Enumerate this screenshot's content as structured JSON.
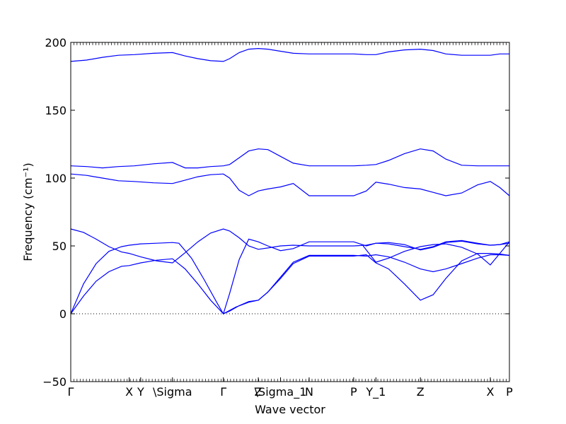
{
  "chart_data": {
    "type": "line",
    "xlabel": "Wave vector",
    "ylabel": "Frequency (cm⁻¹)",
    "ylim": [
      -50,
      200
    ],
    "xlim": [
      0,
      13.8
    ],
    "yticks": [
      -50,
      0,
      50,
      100,
      150,
      200
    ],
    "grid": false,
    "zero_line": 0,
    "xtick_labels": [
      {
        "label": "Γ",
        "x": 0
      },
      {
        "label": "X",
        "x": 1.84
      },
      {
        "label": "Y",
        "x": 2.2
      },
      {
        "label": "\\Sigma",
        "x": 3.2
      },
      {
        "label": "Γ",
        "x": 4.8
      },
      {
        "label": "Z",
        "x": 5.9
      },
      {
        "label": "\\Sigma_1",
        "x": 6.6
      },
      {
        "label": "N",
        "x": 7.5
      },
      {
        "label": "P",
        "x": 8.9
      },
      {
        "label": "Y_1",
        "x": 9.6
      },
      {
        "label": "Z",
        "x": 11.0
      },
      {
        "label": "X",
        "x": 13.2
      },
      {
        "label": "P",
        "x": 13.8
      }
    ],
    "series": [
      {
        "x": [
          0,
          0.5,
          1.0,
          1.5,
          2.0,
          2.6,
          3.2,
          3.6,
          4.0,
          4.4,
          4.8,
          5.0,
          5.3,
          5.6,
          5.9,
          6.2,
          6.6,
          7.0,
          7.5,
          8.2,
          8.9,
          9.3,
          9.6,
          10.0,
          10.5,
          11.0,
          11.4,
          11.8,
          12.3,
          12.8,
          13.2,
          13.5,
          13.8
        ],
        "values": [
          186,
          187,
          189,
          190.5,
          191,
          192,
          192.5,
          190,
          188,
          186.5,
          186,
          188,
          192.5,
          195,
          195.5,
          195,
          193.5,
          192,
          191.5,
          191.5,
          191.5,
          191,
          191,
          193,
          194.5,
          195,
          194,
          191.5,
          190.5,
          190.5,
          190.5,
          191.5,
          191.5
        ]
      },
      {
        "x": [
          0,
          0.5,
          1.0,
          1.5,
          2.0,
          2.6,
          3.2,
          3.6,
          4.0,
          4.4,
          4.8,
          5.0,
          5.3,
          5.6,
          5.9,
          6.2,
          6.6,
          7.0,
          7.5,
          8.2,
          8.9,
          9.3,
          9.6,
          10.0,
          10.5,
          11.0,
          11.4,
          11.8,
          12.3,
          12.8,
          13.2,
          13.5,
          13.8
        ],
        "values": [
          109,
          108.5,
          107.5,
          108.5,
          109,
          110.5,
          111.5,
          107.5,
          107.5,
          108.5,
          109,
          110,
          115,
          120,
          121.5,
          121,
          116,
          111,
          109,
          109,
          109,
          109.5,
          110,
          113,
          118,
          121.5,
          120,
          114,
          109.5,
          109,
          109,
          109,
          109
        ]
      },
      {
        "x": [
          0,
          0.5,
          1.0,
          1.5,
          2.0,
          2.6,
          3.2,
          3.6,
          4.0,
          4.4,
          4.8,
          5.0,
          5.3,
          5.6,
          5.9,
          6.2,
          6.6,
          7.0,
          7.5,
          8.2,
          8.9,
          9.3,
          9.6,
          10.0,
          10.5,
          11.0,
          11.4,
          11.8,
          12.3,
          12.8,
          13.2,
          13.5,
          13.8
        ],
        "values": [
          103,
          102,
          100,
          98,
          97.5,
          96.5,
          96,
          98.5,
          101,
          102.5,
          103,
          100,
          91,
          87,
          90.5,
          92,
          93.5,
          96,
          87,
          87,
          87,
          90.5,
          97,
          95.5,
          93,
          92,
          89.5,
          87,
          89,
          95,
          97.5,
          93,
          87
        ]
      },
      {
        "x": [
          0,
          0.4,
          0.8,
          1.2,
          1.6,
          1.84,
          2.2,
          2.7,
          3.2,
          3.6,
          4.0,
          4.4,
          4.8,
          5.0,
          5.3,
          5.6,
          5.9,
          6.2,
          6.6,
          7.0,
          7.5,
          8.2,
          8.9,
          9.3,
          9.6,
          10.0,
          10.5,
          11.0,
          11.4,
          11.8,
          12.3,
          12.8,
          13.2,
          13.5,
          13.8
        ],
        "values": [
          62.5,
          60,
          55,
          49.5,
          45.5,
          44.5,
          42,
          39,
          37.5,
          45,
          53,
          59.5,
          62.5,
          61,
          56,
          50,
          47.5,
          48.5,
          50,
          50.5,
          50,
          50,
          50,
          50.5,
          52,
          51.5,
          49.5,
          47.5,
          49.5,
          53,
          54,
          52,
          50.5,
          51,
          52
        ]
      },
      {
        "x": [
          0,
          0.4,
          0.8,
          1.2,
          1.6,
          1.84,
          2.2,
          2.7,
          3.2,
          3.4,
          3.8,
          4.2,
          4.6,
          4.8,
          5.0,
          5.3,
          5.6,
          5.9,
          6.2,
          6.6,
          7.0,
          7.5,
          8.2,
          8.9,
          9.3,
          9.6,
          10.0,
          10.5,
          11.0,
          11.4,
          11.8,
          12.3,
          12.8,
          13.2,
          13.5,
          13.8
        ],
        "values": [
          0,
          22,
          37,
          46,
          49.5,
          50.5,
          51.5,
          52,
          52.5,
          52,
          41,
          25,
          8,
          0,
          15,
          40,
          55,
          53,
          50,
          46.5,
          48,
          53,
          53,
          53,
          50,
          52,
          52.5,
          51,
          47,
          49,
          52.5,
          53.5,
          51.5,
          50.5,
          51,
          53
        ]
      },
      {
        "x": [
          0,
          0.4,
          0.8,
          1.2,
          1.6,
          1.84,
          2.2,
          2.7,
          3.2,
          3.6,
          4.0,
          4.4,
          4.8,
          5.0,
          5.3,
          5.6,
          5.9,
          6.2,
          6.6,
          7.0,
          7.5,
          8.2,
          8.9,
          9.3,
          9.6,
          10.0,
          10.5,
          11.0,
          11.4,
          11.8,
          12.3,
          12.8,
          13.2,
          13.5,
          13.8
        ],
        "values": [
          0,
          13,
          24,
          31,
          35,
          35.5,
          37.5,
          39.5,
          40.5,
          33,
          22,
          10,
          0,
          2,
          6,
          9,
          10,
          16,
          27,
          38,
          43,
          43,
          43,
          42.5,
          43.5,
          42,
          38,
          33,
          31,
          33,
          37,
          41,
          43.5,
          43.5,
          43
        ]
      },
      {
        "x": [
          4.8,
          5.2,
          5.6,
          5.9,
          6.2,
          6.6,
          7.0,
          7.5,
          8.2,
          8.9,
          9.3,
          9.6,
          10.0,
          10.5,
          11.0,
          11.4,
          11.8,
          12.3,
          12.8,
          13.2,
          13.5,
          13.8
        ],
        "values": [
          0,
          5,
          8.5,
          10,
          16,
          26,
          37,
          42.5,
          42.5,
          42.5,
          43.5,
          37.5,
          33,
          22,
          10,
          14,
          26,
          39,
          44.5,
          44.5,
          44,
          43
        ]
      },
      {
        "x": [
          9.2,
          9.6,
          10.0,
          10.5,
          11.0,
          11.4,
          11.8,
          12.3,
          12.8,
          13.2,
          13.5,
          13.8
        ],
        "values": [
          50,
          38,
          41,
          46,
          49.5,
          51,
          51.5,
          49,
          44,
          36,
          44.5,
          53
        ]
      }
    ]
  }
}
